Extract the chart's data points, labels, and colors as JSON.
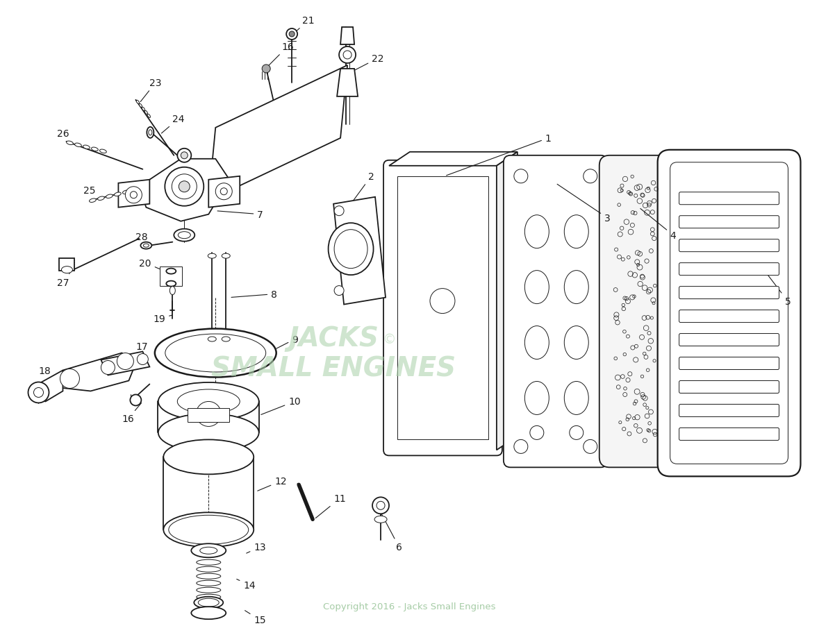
{
  "bg_color": "#ffffff",
  "copyright_text": "Copyright 2016 - Jacks Small Engines",
  "label_fontsize": 10,
  "label_color": "#1a1a1a",
  "line_color": "#1a1a1a",
  "watermark_color": "#b0d4b0",
  "lw_main": 1.3,
  "lw_thin": 0.7,
  "lw_med": 1.0
}
